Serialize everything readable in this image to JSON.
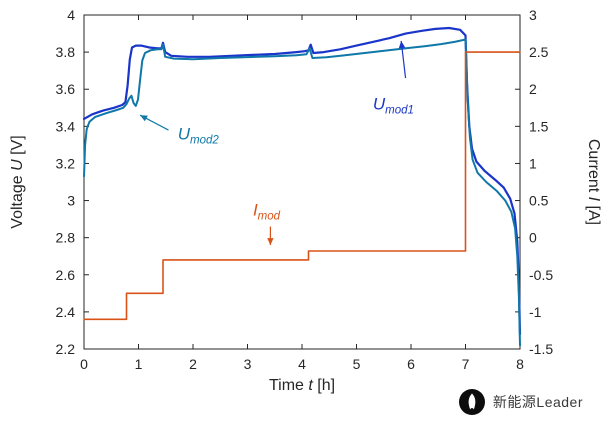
{
  "chart_data": {
    "type": "line",
    "title": "",
    "xlabel": {
      "pre": "Time ",
      "var": "t",
      "post": " [h]"
    },
    "ylabel_left": {
      "pre": "Voltage ",
      "var": "U",
      "post": " [V]"
    },
    "ylabel_right": {
      "pre": "Current ",
      "var": "I",
      "post": " [A]"
    },
    "xlim": [
      0,
      8
    ],
    "ylim_left": [
      2.2,
      4
    ],
    "ylim_right": [
      -1.5,
      3
    ],
    "xticks": [
      0,
      1,
      2,
      3,
      4,
      5,
      6,
      7,
      8
    ],
    "yticks_left": [
      2.2,
      2.4,
      2.6,
      2.8,
      3,
      3.2,
      3.4,
      3.6,
      3.8,
      4
    ],
    "yticks_right": [
      -1.5,
      -1,
      -0.5,
      0,
      0.5,
      1,
      1.5,
      2,
      2.5,
      3
    ],
    "grid": false,
    "legend": "none",
    "axis_color": "#262626",
    "series": [
      {
        "name": "U_mod1",
        "axis": "left",
        "color": "#1a35c9",
        "width": 2.2,
        "points": [
          [
            0,
            3.44
          ],
          [
            0.15,
            3.465
          ],
          [
            0.35,
            3.485
          ],
          [
            0.55,
            3.5
          ],
          [
            0.7,
            3.515
          ],
          [
            0.76,
            3.53
          ],
          [
            0.8,
            3.62
          ],
          [
            0.84,
            3.76
          ],
          [
            0.88,
            3.825
          ],
          [
            0.95,
            3.835
          ],
          [
            1.05,
            3.835
          ],
          [
            1.2,
            3.825
          ],
          [
            1.35,
            3.82
          ],
          [
            1.42,
            3.82
          ],
          [
            1.45,
            3.85
          ],
          [
            1.49,
            3.8
          ],
          [
            1.6,
            3.78
          ],
          [
            1.9,
            3.775
          ],
          [
            2.3,
            3.775
          ],
          [
            2.7,
            3.78
          ],
          [
            3.1,
            3.785
          ],
          [
            3.5,
            3.79
          ],
          [
            3.9,
            3.8
          ],
          [
            4.05,
            3.805
          ],
          [
            4.12,
            3.81
          ],
          [
            4.16,
            3.84
          ],
          [
            4.21,
            3.795
          ],
          [
            4.4,
            3.8
          ],
          [
            4.7,
            3.815
          ],
          [
            5.0,
            3.835
          ],
          [
            5.3,
            3.855
          ],
          [
            5.6,
            3.875
          ],
          [
            5.9,
            3.9
          ],
          [
            6.2,
            3.915
          ],
          [
            6.45,
            3.925
          ],
          [
            6.7,
            3.93
          ],
          [
            6.9,
            3.92
          ],
          [
            7.0,
            3.89
          ],
          [
            7.03,
            3.62
          ],
          [
            7.07,
            3.4
          ],
          [
            7.12,
            3.28
          ],
          [
            7.2,
            3.21
          ],
          [
            7.35,
            3.16
          ],
          [
            7.55,
            3.11
          ],
          [
            7.7,
            3.07
          ],
          [
            7.82,
            3.01
          ],
          [
            7.9,
            2.93
          ],
          [
            7.95,
            2.78
          ],
          [
            7.98,
            2.55
          ],
          [
            8.0,
            2.28
          ]
        ]
      },
      {
        "name": "U_mod2",
        "axis": "left",
        "color": "#0f78a8",
        "width": 2.0,
        "points": [
          [
            0,
            3.13
          ],
          [
            0.02,
            3.3
          ],
          [
            0.05,
            3.385
          ],
          [
            0.1,
            3.425
          ],
          [
            0.2,
            3.45
          ],
          [
            0.4,
            3.47
          ],
          [
            0.6,
            3.488
          ],
          [
            0.72,
            3.5
          ],
          [
            0.78,
            3.52
          ],
          [
            0.83,
            3.55
          ],
          [
            0.87,
            3.565
          ],
          [
            0.91,
            3.525
          ],
          [
            0.95,
            3.51
          ],
          [
            0.99,
            3.545
          ],
          [
            1.03,
            3.65
          ],
          [
            1.07,
            3.755
          ],
          [
            1.12,
            3.795
          ],
          [
            1.22,
            3.81
          ],
          [
            1.35,
            3.815
          ],
          [
            1.42,
            3.815
          ],
          [
            1.45,
            3.84
          ],
          [
            1.49,
            3.775
          ],
          [
            1.65,
            3.765
          ],
          [
            2.0,
            3.762
          ],
          [
            2.5,
            3.768
          ],
          [
            3.0,
            3.773
          ],
          [
            3.5,
            3.778
          ],
          [
            3.9,
            3.783
          ],
          [
            4.08,
            3.788
          ],
          [
            4.14,
            3.82
          ],
          [
            4.19,
            3.768
          ],
          [
            4.45,
            3.772
          ],
          [
            4.75,
            3.782
          ],
          [
            5.05,
            3.792
          ],
          [
            5.35,
            3.802
          ],
          [
            5.65,
            3.812
          ],
          [
            5.95,
            3.822
          ],
          [
            6.25,
            3.832
          ],
          [
            6.55,
            3.843
          ],
          [
            6.8,
            3.855
          ],
          [
            7.0,
            3.868
          ],
          [
            7.04,
            3.54
          ],
          [
            7.08,
            3.34
          ],
          [
            7.13,
            3.22
          ],
          [
            7.22,
            3.15
          ],
          [
            7.38,
            3.1
          ],
          [
            7.58,
            3.05
          ],
          [
            7.73,
            3.0
          ],
          [
            7.84,
            2.94
          ],
          [
            7.91,
            2.85
          ],
          [
            7.95,
            2.7
          ],
          [
            7.98,
            2.48
          ],
          [
            8.0,
            2.22
          ]
        ]
      },
      {
        "name": "I_mod",
        "axis": "right",
        "color": "#d95319",
        "width": 1.6,
        "points": [
          [
            0,
            -1.1
          ],
          [
            0.78,
            -1.1
          ],
          [
            0.78,
            -0.75
          ],
          [
            1.45,
            -0.75
          ],
          [
            1.45,
            -0.3
          ],
          [
            4.12,
            -0.3
          ],
          [
            4.12,
            -0.18
          ],
          [
            7.0,
            -0.18
          ],
          [
            7.0,
            2.5
          ],
          [
            8.0,
            2.5
          ]
        ]
      }
    ],
    "annotations": [
      {
        "name": "U_mod2",
        "var": "U",
        "sub": "mod2",
        "color": "#0f78a8",
        "label_xy": [
          1.72,
          3.33
        ],
        "arrow_from": [
          1.55,
          3.38
        ],
        "arrow_to": [
          1.03,
          3.46
        ]
      },
      {
        "name": "U_mod1",
        "var": "U",
        "sub": "mod1",
        "color": "#1a35c9",
        "label_xy": [
          5.3,
          3.49
        ],
        "arrow_from": [
          5.9,
          3.66
        ],
        "arrow_to": [
          5.82,
          3.86
        ]
      },
      {
        "name": "I_mod",
        "var": "I",
        "sub": "mod",
        "color": "#d95319",
        "label_xy": [
          3.1,
          2.92
        ],
        "arrow_from": [
          3.42,
          2.86
        ],
        "arrow_to": [
          3.42,
          2.76
        ]
      }
    ]
  },
  "watermark": {
    "label": "新能源Leader"
  }
}
